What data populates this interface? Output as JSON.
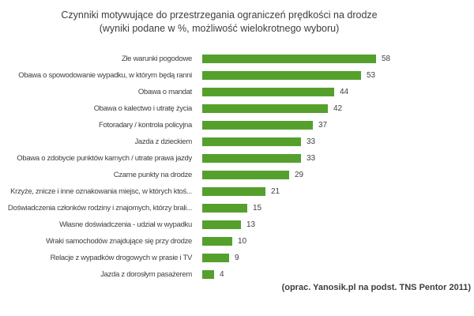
{
  "title": {
    "line1": "Czynniki motywujące do przestrzegania ograniczeń prędkości na drodze",
    "line2": "(wyniki podane w %, możliwość wielokrotnego wyboru)"
  },
  "source_note": "(oprac. Yanosik.pl na podst. TNS Pentor 2011)",
  "colors": {
    "bar": "#55a02d",
    "text": "#404040"
  },
  "chart_data": {
    "type": "bar",
    "orientation": "horizontal",
    "title": "Czynniki motywujące do przestrzegania ograniczeń prędkości na drodze (wyniki podane w %, możliwość wielokrotnego wyboru)",
    "categories": [
      "Złe warunki pogodowe",
      "Obawa o spowodowanie wypadku, w którym będą ranni",
      "Obawa o mandat",
      "Obawa o kalectwo i utratę życia",
      "Fotoradary / kontrola policyjna",
      "Jazda z dzieckiem",
      "Obawa o zdobycie punktów karnych / utrate prawa jazdy",
      "Czarne punkty na drodze",
      "Krzyże, znicze i inne oznakowania miejsc, w których ktoś...",
      "Doświadczenia członków rodziny i znajomych, którzy brali...",
      "Własne doświadczenia - udział w wypadku",
      "Wraki samochodów znajdujące się przy drodze",
      "Relacje z wypadków drogowych w prasie i TV",
      "Jazda z dorosłym pasażerem"
    ],
    "values": [
      58,
      53,
      44,
      42,
      37,
      33,
      33,
      29,
      21,
      15,
      13,
      10,
      9,
      4
    ],
    "unit": "%",
    "xlim": [
      0,
      60
    ],
    "data_labels": true,
    "grid": false,
    "legend": false
  }
}
